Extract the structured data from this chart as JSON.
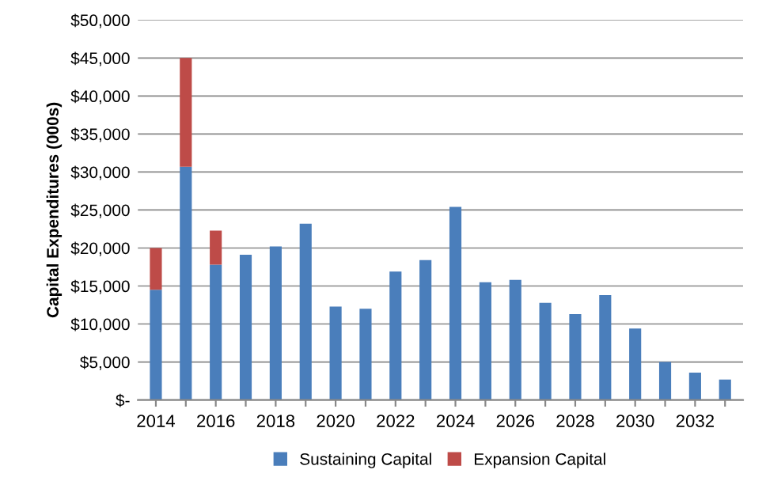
{
  "chart_data": {
    "type": "bar",
    "stacked": true,
    "ylabel": "Capital Expenditures (000s)",
    "categories": [
      "2014",
      null,
      "2016",
      null,
      "2018",
      null,
      "2020",
      null,
      "2022",
      null,
      "2024",
      null,
      "2026",
      null,
      "2028",
      null,
      "2030",
      null,
      "2032",
      null
    ],
    "series": [
      {
        "name": "Sustaining Capital",
        "color": "#4a7ebb",
        "values": [
          14500,
          30700,
          17800,
          19100,
          20200,
          23200,
          12300,
          12000,
          16900,
          18400,
          25400,
          15500,
          15800,
          12800,
          11300,
          13800,
          9400,
          5000,
          3600,
          2700
        ]
      },
      {
        "name": "Expansion Capital",
        "color": "#be4b48",
        "values": [
          5500,
          14300,
          4500,
          0,
          0,
          0,
          0,
          0,
          0,
          0,
          0,
          0,
          0,
          0,
          0,
          0,
          0,
          0,
          0,
          0
        ]
      }
    ],
    "ylim": [
      0,
      50000
    ],
    "yticks": [
      {
        "value": 0,
        "label": "$-"
      },
      {
        "value": 5000,
        "label": "$5,000"
      },
      {
        "value": 10000,
        "label": "$10,000"
      },
      {
        "value": 15000,
        "label": "$15,000"
      },
      {
        "value": 20000,
        "label": "$20,000"
      },
      {
        "value": 25000,
        "label": "$25,000"
      },
      {
        "value": 30000,
        "label": "$30,000"
      },
      {
        "value": 35000,
        "label": "$35,000"
      },
      {
        "value": 40000,
        "label": "$40,000"
      },
      {
        "value": 45000,
        "label": "$45,000"
      },
      {
        "value": 50000,
        "label": "$50,000"
      }
    ],
    "grid": "y",
    "legend": "bottom"
  }
}
